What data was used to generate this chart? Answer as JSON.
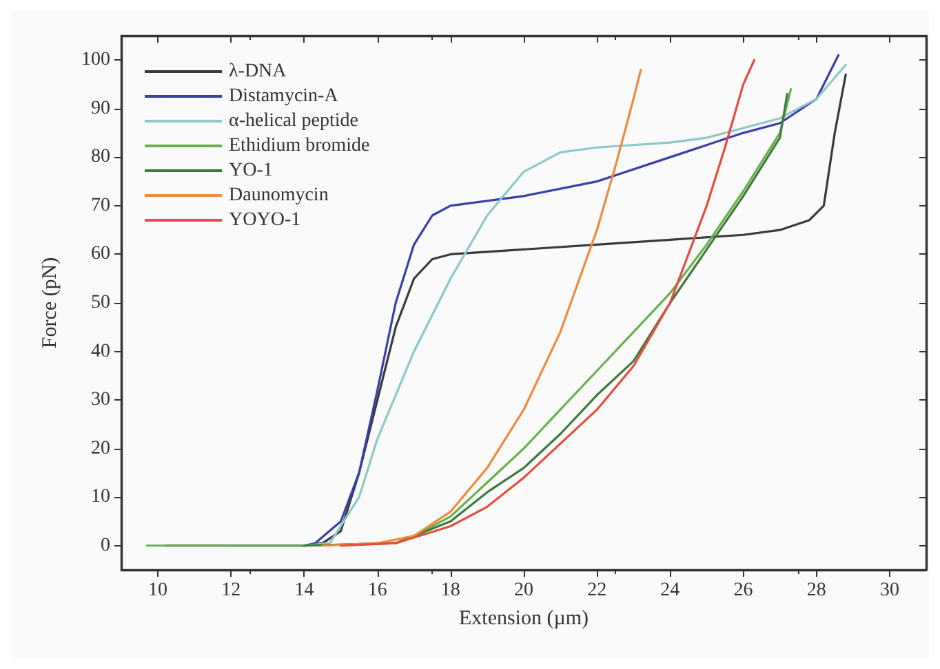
{
  "chart_data": {
    "type": "line",
    "xlabel": "Extension (µm)",
    "ylabel": "Force (pN)",
    "xlim": [
      9,
      31
    ],
    "ylim": [
      -5,
      105
    ],
    "xticks": [
      10,
      12,
      14,
      16,
      18,
      20,
      22,
      24,
      26,
      28,
      30
    ],
    "yticks": [
      0,
      10,
      20,
      30,
      40,
      50,
      60,
      70,
      80,
      90,
      100
    ],
    "grid": false,
    "legend": "top left",
    "marker": "none",
    "line_style": "solid",
    "series": [
      {
        "name": "λ-DNA",
        "color": "#3a3a3a",
        "x": [
          10.2,
          12,
          14,
          14.5,
          15,
          15.5,
          16,
          16.5,
          17,
          17.5,
          18,
          20,
          22,
          24,
          26,
          27,
          27.8,
          28.2,
          28.5,
          28.8
        ],
        "values": [
          0,
          0,
          0,
          0.5,
          3,
          15,
          30,
          45,
          55,
          59,
          60,
          61,
          62,
          63,
          64,
          65,
          67,
          70,
          85,
          97
        ]
      },
      {
        "name": "Distamycin-A",
        "color": "#3a3fa8",
        "x": [
          12,
          14,
          14.3,
          15,
          15.5,
          16,
          16.5,
          17,
          17.5,
          18,
          20,
          22,
          24,
          26,
          27,
          28,
          28.6
        ],
        "values": [
          0,
          0,
          0.5,
          5,
          15,
          32,
          50,
          62,
          68,
          70,
          72,
          75,
          80,
          85,
          87,
          92,
          101
        ]
      },
      {
        "name": "α-helical peptide",
        "color": "#8fc8c8",
        "x": [
          14,
          14.7,
          15.5,
          16,
          17,
          18,
          19,
          20,
          21,
          22,
          24,
          25,
          26,
          27,
          28,
          28.8
        ],
        "values": [
          0,
          0.5,
          10,
          22,
          40,
          55,
          68,
          77,
          81,
          82,
          83,
          84,
          86,
          88,
          92,
          99
        ]
      },
      {
        "name": "Ethidium bromide",
        "color": "#6ab04c",
        "x": [
          9.7,
          12,
          14,
          16.5,
          17,
          18,
          19,
          20,
          21,
          22,
          23,
          24,
          25,
          26,
          27,
          27.3
        ],
        "values": [
          0,
          0,
          0,
          0.5,
          2,
          6,
          13,
          20,
          28,
          36,
          44,
          52,
          62,
          73,
          85,
          94
        ]
      },
      {
        "name": "YO-1",
        "color": "#3e7a3e",
        "x": [
          14,
          16.5,
          18,
          19,
          20,
          21,
          22,
          23,
          24,
          25,
          26,
          27,
          27.2
        ],
        "values": [
          0,
          0.5,
          5,
          11,
          16,
          23,
          31,
          38,
          50,
          61,
          72,
          84,
          93
        ]
      },
      {
        "name": "Daunomycin",
        "color": "#f08a3c",
        "x": [
          14.5,
          16,
          17,
          18,
          19,
          20,
          21,
          22,
          22.5,
          23,
          23.2
        ],
        "values": [
          0,
          0.5,
          2,
          7,
          16,
          28,
          44,
          65,
          78,
          92,
          98
        ]
      },
      {
        "name": "YOYO-1",
        "color": "#e84c3c",
        "x": [
          15,
          16.5,
          18,
          19,
          20,
          21,
          22,
          23,
          24,
          25,
          25.5,
          26,
          26.3
        ],
        "values": [
          0,
          0.5,
          4,
          8,
          14,
          21,
          28,
          37,
          50,
          70,
          82,
          95,
          100
        ]
      }
    ]
  }
}
